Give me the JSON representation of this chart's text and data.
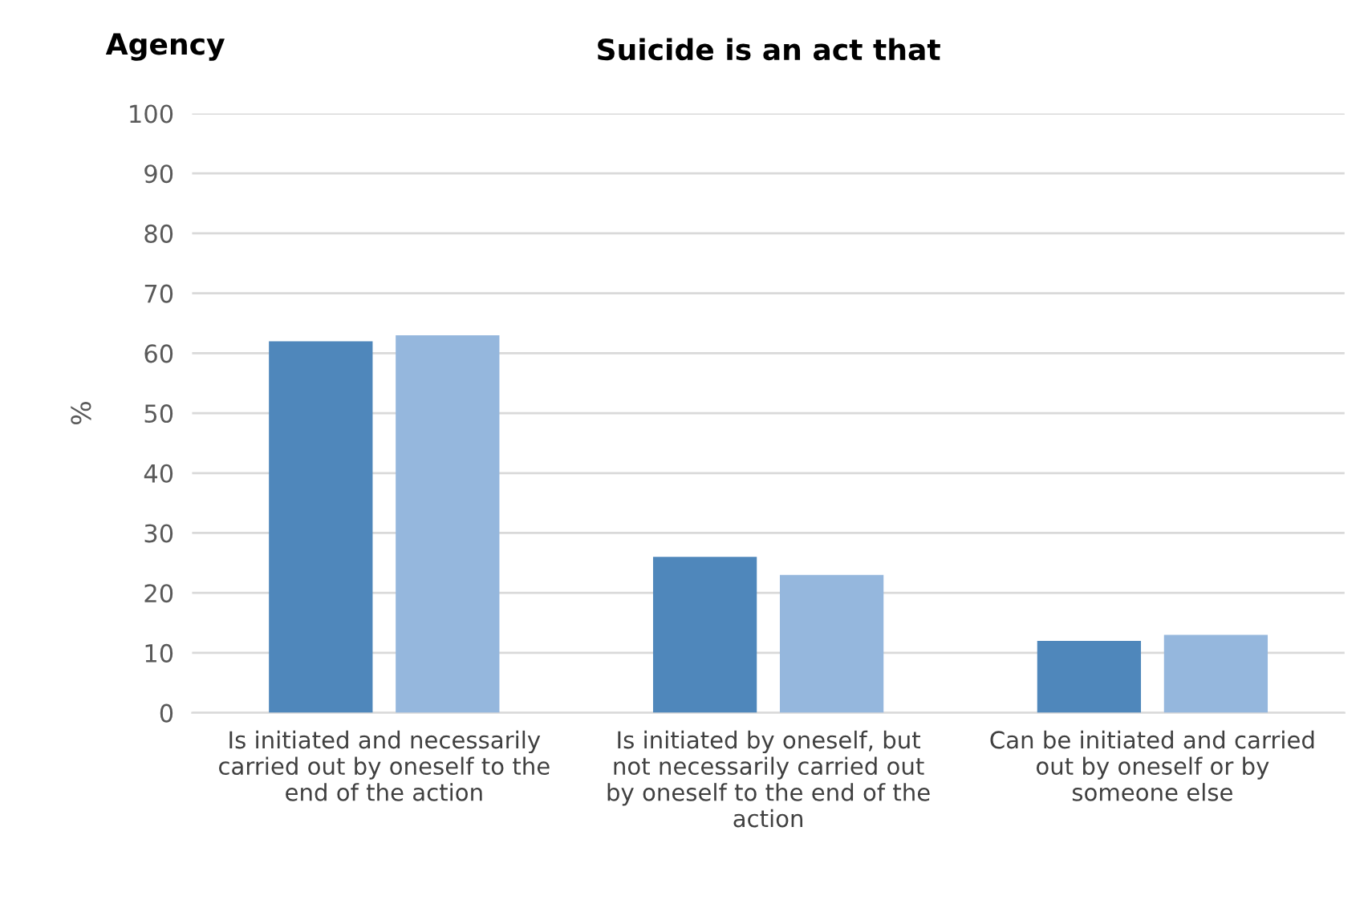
{
  "chart_data": {
    "type": "bar",
    "title": "Suicide is an act that",
    "subtitle": "Agency",
    "ylabel": "%",
    "categories": [
      "Is initiated and necessarily\ncarried out by oneself to the\nend of the action",
      "Is initiated by oneself, but\nnot necessarily carried out\nby oneself to the end of the\naction",
      "Can be initiated and carried\nout by oneself or by\nsomeone else"
    ],
    "series": [
      {
        "color": "#4f87bb",
        "values": [
          62,
          26,
          12
        ]
      },
      {
        "color": "#95b7dd",
        "values": [
          63,
          23,
          13
        ]
      }
    ],
    "ylim": [
      0,
      100
    ],
    "yticks": [
      0,
      10,
      20,
      30,
      40,
      50,
      60,
      70,
      80,
      90,
      100
    ],
    "grid": "y"
  }
}
